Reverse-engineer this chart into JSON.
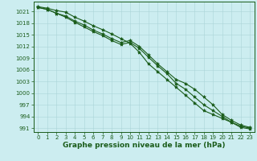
{
  "x": [
    0,
    1,
    2,
    3,
    4,
    5,
    6,
    7,
    8,
    9,
    10,
    11,
    12,
    13,
    14,
    15,
    16,
    17,
    18,
    19,
    20,
    21,
    22,
    23
  ],
  "line1": [
    1022.2,
    1021.8,
    1021.2,
    1020.8,
    1019.5,
    1018.5,
    1017.3,
    1016.3,
    1015.2,
    1014.0,
    1012.8,
    1010.5,
    1007.5,
    1005.5,
    1003.5,
    1001.5,
    999.5,
    997.5,
    995.5,
    994.5,
    993.5,
    992.5,
    991.5,
    991.0
  ],
  "line2": [
    1022.0,
    1021.5,
    1020.5,
    1019.8,
    1018.5,
    1017.5,
    1016.2,
    1015.2,
    1014.0,
    1013.0,
    1013.5,
    1012.0,
    1009.8,
    1007.5,
    1005.5,
    1003.5,
    1002.5,
    1001.0,
    999.0,
    997.0,
    994.5,
    993.0,
    991.8,
    991.2
  ],
  "line3": [
    1022.0,
    1021.5,
    1020.5,
    1019.5,
    1018.2,
    1017.0,
    1015.8,
    1014.8,
    1013.5,
    1012.5,
    1013.0,
    1011.5,
    1009.2,
    1007.0,
    1005.0,
    1002.5,
    1001.0,
    999.0,
    997.0,
    995.5,
    994.0,
    992.5,
    991.2,
    990.8
  ],
  "line_color": "#1a5c1a",
  "bg_color": "#ccedf0",
  "grid_color": "#aad4d8",
  "axis_color": "#1a5c1a",
  "text_color": "#1a5c1a",
  "marker": "*",
  "markersize": 3,
  "linewidth": 0.8,
  "ylim": [
    990.0,
    1023.5
  ],
  "yticks": [
    991,
    994,
    997,
    1000,
    1003,
    1006,
    1009,
    1012,
    1015,
    1018,
    1021
  ],
  "xlim": [
    -0.5,
    23.5
  ],
  "xticks": [
    0,
    1,
    2,
    3,
    4,
    5,
    6,
    7,
    8,
    9,
    10,
    11,
    12,
    13,
    14,
    15,
    16,
    17,
    18,
    19,
    20,
    21,
    22,
    23
  ],
  "xlabel": "Graphe pression niveau de la mer (hPa)",
  "xlabel_fontsize": 6.5,
  "tick_fontsize": 5.0,
  "fig_width": 3.2,
  "fig_height": 2.0
}
